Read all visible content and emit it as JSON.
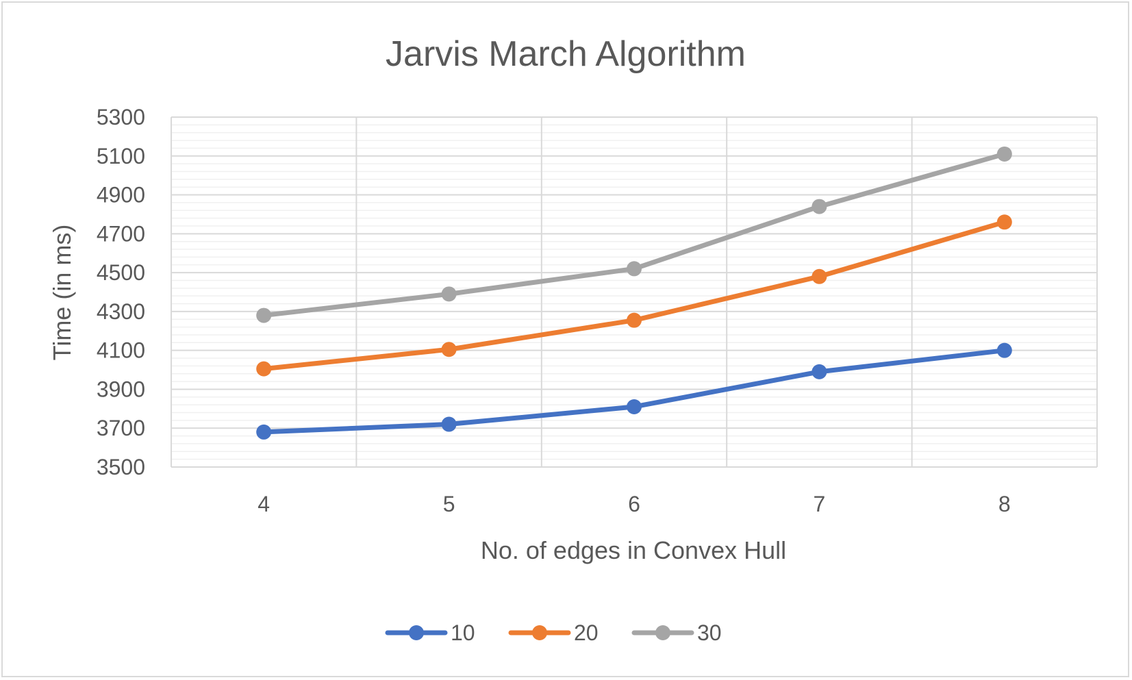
{
  "chart_data": {
    "type": "line",
    "title": "Jarvis March Algorithm",
    "xlabel": "No. of edges in Convex Hull",
    "ylabel": "Time (in ms)",
    "categories": [
      "4",
      "5",
      "6",
      "7",
      "8"
    ],
    "ylim": [
      3500,
      5300
    ],
    "y_major_step": 200,
    "y_minor_step": 40,
    "yticks": [
      "3500",
      "3700",
      "3900",
      "4100",
      "4300",
      "4500",
      "4700",
      "4900",
      "5100",
      "5300"
    ],
    "grid": true,
    "legend_position": "bottom",
    "series": [
      {
        "name": "10",
        "color": "#4472C4",
        "values": [
          3680,
          3720,
          3810,
          3990,
          4100
        ]
      },
      {
        "name": "20",
        "color": "#ED7D31",
        "values": [
          4005,
          4105,
          4255,
          4480,
          4760
        ]
      },
      {
        "name": "30",
        "color": "#A5A5A5",
        "values": [
          4280,
          4390,
          4520,
          4840,
          5110
        ]
      }
    ]
  }
}
